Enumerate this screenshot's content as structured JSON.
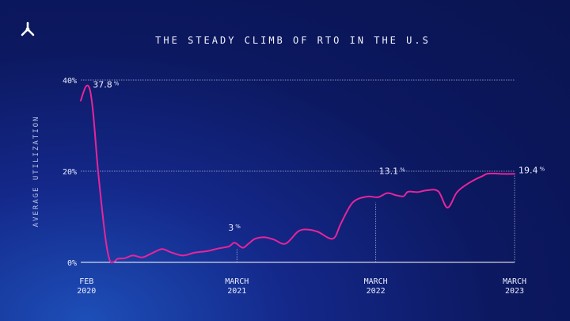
{
  "chart_data": {
    "type": "line",
    "title": "THE STEADY CLIMB OF RTO IN THE U.S",
    "ylabel": "AVERAGE UTILIZATION",
    "xlabel": "",
    "ylim": [
      0,
      40
    ],
    "yticks": [
      "0%",
      "20%",
      "40%"
    ],
    "ytick_values": [
      0,
      20,
      40
    ],
    "xticks": [
      {
        "label_top": "FEB",
        "label_bottom": "2020",
        "month": 0
      },
      {
        "label_top": "MARCH",
        "label_bottom": "2021",
        "month": 13
      },
      {
        "label_top": "MARCH",
        "label_bottom": "2022",
        "month": 25
      },
      {
        "label_top": "MARCH",
        "label_bottom": "2023",
        "month": 37
      }
    ],
    "xlim": [
      -0.5,
      37
    ],
    "series": [
      {
        "name": "Average Utilization",
        "color": "#e8249b",
        "x": [
          -0.5,
          -0.05,
          0.3,
          0.6,
          1.0,
          1.6,
          2.0,
          2.4,
          2.7,
          3.3,
          4.0,
          4.8,
          5.5,
          6.5,
          7.2,
          8.3,
          9.3,
          10.5,
          11.3,
          12.3,
          12.8,
          13.5,
          14.0,
          14.6,
          15.4,
          16.2,
          17.2,
          18.3,
          19.1,
          20.0,
          21.3,
          22.0,
          23.0,
          24.2,
          25.2,
          26.0,
          26.8,
          27.4,
          27.8,
          28.6,
          29.4,
          30.4,
          31.2,
          32.0,
          32.8,
          33.6,
          34.2,
          34.6,
          35.2,
          36.0,
          37.0
        ],
        "values": [
          35.5,
          38.6,
          37.8,
          32,
          20,
          6,
          0.5,
          0.2,
          0.8,
          0.9,
          1.5,
          1.1,
          1.8,
          2.9,
          2.3,
          1.5,
          2.1,
          2.5,
          3.0,
          3.5,
          4.3,
          3.2,
          4.1,
          5.2,
          5.5,
          5.0,
          4.1,
          6.8,
          7.2,
          6.7,
          5.2,
          8.6,
          13.1,
          14.4,
          14.3,
          15.2,
          14.7,
          14.5,
          15.5,
          15.4,
          15.8,
          15.6,
          12.0,
          15.3,
          17.0,
          18.2,
          18.9,
          19.4,
          19.5,
          19.4,
          19.4
        ],
        "annotations": [
          {
            "label": "37.8",
            "unit": "%",
            "x": 0.0,
            "value": 37.8
          },
          {
            "label": "3",
            "unit": "%",
            "x": 13.0,
            "value": 3
          },
          {
            "label": "13.1",
            "unit": "%",
            "x": 25.0,
            "value": 13.1
          },
          {
            "label": "19.4",
            "unit": "%",
            "x": 37.0,
            "value": 19.4
          }
        ]
      }
    ],
    "grid": true
  },
  "logo_icon": "tripod-logo-icon"
}
